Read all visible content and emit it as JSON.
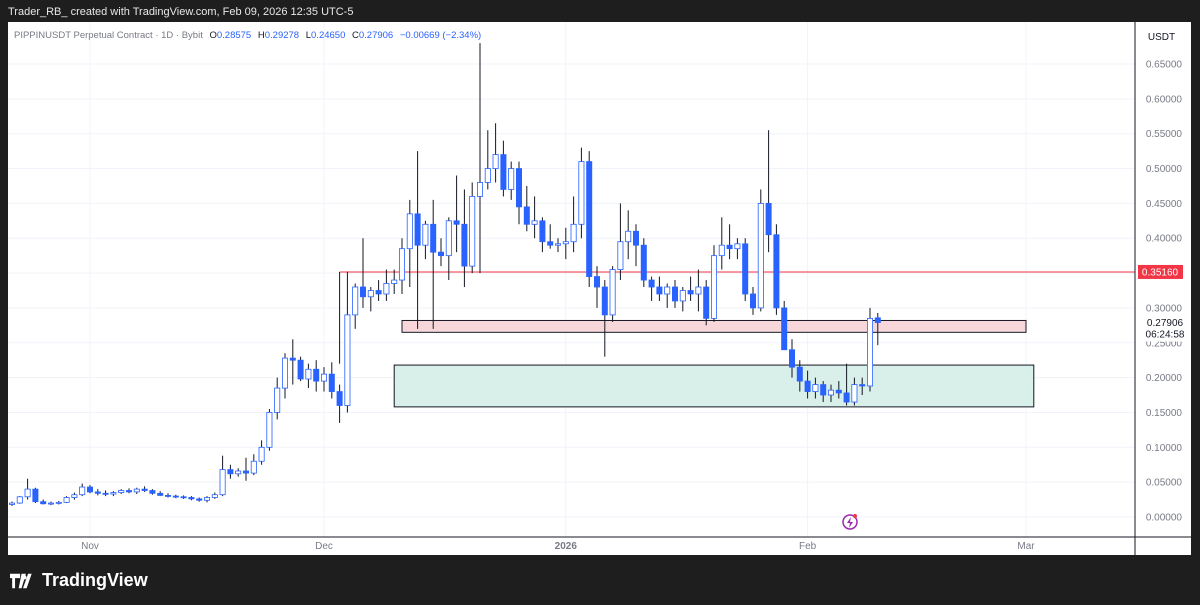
{
  "header": {
    "text": "Trader_RB_ created with TradingView.com, Feb 09, 2026 12:35 UTC-5"
  },
  "legend": {
    "symbol": "PIPPINUSDT Perpetual Contract · 1D · Bybit",
    "open_label": "O",
    "open": "0.28575",
    "high_label": "H",
    "high": "0.29278",
    "low_label": "L",
    "low": "0.24650",
    "close_label": "C",
    "close": "0.27906",
    "change": "−0.00669 (−2.34%)"
  },
  "currency": "USDT",
  "y_ticks": [
    "0.65000",
    "0.60000",
    "0.55000",
    "0.50000",
    "0.45000",
    "0.40000",
    "0.35000",
    "0.30000",
    "0.25000",
    "0.20000",
    "0.15000",
    "0.10000",
    "0.05000",
    "0.00000"
  ],
  "x_ticks": [
    "Nov",
    "Dec",
    "2026",
    "Feb",
    "Mar"
  ],
  "badges": {
    "resistance": "0.35160",
    "last_price": "0.27906",
    "countdown": "06:24:58"
  },
  "footer": {
    "brand": "TradingView"
  },
  "colors": {
    "up": "#ffffff",
    "down": "#2962ff",
    "resistance": "#f23645",
    "supply_zone": "#f8d7da",
    "demand_zone": "#d9efe9"
  },
  "chart_data": {
    "type": "candlestick",
    "title": "PIPPINUSDT Perpetual Contract · 1D · Bybit",
    "ylim": [
      0,
      0.68
    ],
    "x_start_label": "Oct 22, 2025",
    "levels": [
      {
        "name": "resistance",
        "value": 0.3516
      }
    ],
    "zones": [
      {
        "name": "supply",
        "from_index": 50,
        "to_index": 130,
        "low": 0.265,
        "high": 0.282
      },
      {
        "name": "demand",
        "from_index": 49,
        "to_index": 131,
        "low": 0.158,
        "high": 0.218
      }
    ],
    "candles": [
      {
        "o": 0.018,
        "h": 0.022,
        "l": 0.016,
        "c": 0.02
      },
      {
        "o": 0.02,
        "h": 0.03,
        "l": 0.019,
        "c": 0.029
      },
      {
        "o": 0.029,
        "h": 0.055,
        "l": 0.025,
        "c": 0.04
      },
      {
        "o": 0.04,
        "h": 0.042,
        "l": 0.02,
        "c": 0.022
      },
      {
        "o": 0.022,
        "h": 0.025,
        "l": 0.018,
        "c": 0.019
      },
      {
        "o": 0.019,
        "h": 0.022,
        "l": 0.017,
        "c": 0.02
      },
      {
        "o": 0.02,
        "h": 0.023,
        "l": 0.018,
        "c": 0.021
      },
      {
        "o": 0.021,
        "h": 0.03,
        "l": 0.02,
        "c": 0.028
      },
      {
        "o": 0.028,
        "h": 0.035,
        "l": 0.025,
        "c": 0.032
      },
      {
        "o": 0.032,
        "h": 0.048,
        "l": 0.03,
        "c": 0.043
      },
      {
        "o": 0.043,
        "h": 0.046,
        "l": 0.034,
        "c": 0.036
      },
      {
        "o": 0.036,
        "h": 0.04,
        "l": 0.031,
        "c": 0.034
      },
      {
        "o": 0.034,
        "h": 0.038,
        "l": 0.03,
        "c": 0.033
      },
      {
        "o": 0.033,
        "h": 0.037,
        "l": 0.03,
        "c": 0.035
      },
      {
        "o": 0.035,
        "h": 0.04,
        "l": 0.033,
        "c": 0.038
      },
      {
        "o": 0.038,
        "h": 0.041,
        "l": 0.034,
        "c": 0.036
      },
      {
        "o": 0.036,
        "h": 0.042,
        "l": 0.033,
        "c": 0.04
      },
      {
        "o": 0.04,
        "h": 0.044,
        "l": 0.036,
        "c": 0.038
      },
      {
        "o": 0.038,
        "h": 0.04,
        "l": 0.032,
        "c": 0.034
      },
      {
        "o": 0.034,
        "h": 0.037,
        "l": 0.03,
        "c": 0.031
      },
      {
        "o": 0.031,
        "h": 0.034,
        "l": 0.028,
        "c": 0.03
      },
      {
        "o": 0.03,
        "h": 0.032,
        "l": 0.027,
        "c": 0.029
      },
      {
        "o": 0.029,
        "h": 0.031,
        "l": 0.026,
        "c": 0.028
      },
      {
        "o": 0.028,
        "h": 0.03,
        "l": 0.024,
        "c": 0.026
      },
      {
        "o": 0.026,
        "h": 0.028,
        "l": 0.022,
        "c": 0.024
      },
      {
        "o": 0.024,
        "h": 0.03,
        "l": 0.021,
        "c": 0.028
      },
      {
        "o": 0.028,
        "h": 0.035,
        "l": 0.026,
        "c": 0.032
      },
      {
        "o": 0.032,
        "h": 0.088,
        "l": 0.03,
        "c": 0.068
      },
      {
        "o": 0.068,
        "h": 0.075,
        "l": 0.055,
        "c": 0.062
      },
      {
        "o": 0.062,
        "h": 0.07,
        "l": 0.058,
        "c": 0.066
      },
      {
        "o": 0.066,
        "h": 0.085,
        "l": 0.052,
        "c": 0.063
      },
      {
        "o": 0.063,
        "h": 0.09,
        "l": 0.06,
        "c": 0.08
      },
      {
        "o": 0.08,
        "h": 0.11,
        "l": 0.075,
        "c": 0.1
      },
      {
        "o": 0.1,
        "h": 0.155,
        "l": 0.095,
        "c": 0.15
      },
      {
        "o": 0.15,
        "h": 0.2,
        "l": 0.14,
        "c": 0.185
      },
      {
        "o": 0.185,
        "h": 0.235,
        "l": 0.17,
        "c": 0.228
      },
      {
        "o": 0.228,
        "h": 0.255,
        "l": 0.19,
        "c": 0.225
      },
      {
        "o": 0.225,
        "h": 0.23,
        "l": 0.195,
        "c": 0.198
      },
      {
        "o": 0.198,
        "h": 0.22,
        "l": 0.185,
        "c": 0.212
      },
      {
        "o": 0.212,
        "h": 0.225,
        "l": 0.18,
        "c": 0.195
      },
      {
        "o": 0.195,
        "h": 0.215,
        "l": 0.18,
        "c": 0.205
      },
      {
        "o": 0.205,
        "h": 0.222,
        "l": 0.17,
        "c": 0.18
      },
      {
        "o": 0.18,
        "h": 0.19,
        "l": 0.135,
        "c": 0.16
      },
      {
        "o": 0.16,
        "h": 0.352,
        "l": 0.15,
        "c": 0.29
      },
      {
        "o": 0.29,
        "h": 0.335,
        "l": 0.27,
        "c": 0.33
      },
      {
        "o": 0.33,
        "h": 0.4,
        "l": 0.3,
        "c": 0.316
      },
      {
        "o": 0.316,
        "h": 0.33,
        "l": 0.295,
        "c": 0.325
      },
      {
        "o": 0.325,
        "h": 0.34,
        "l": 0.31,
        "c": 0.32
      },
      {
        "o": 0.32,
        "h": 0.355,
        "l": 0.31,
        "c": 0.335
      },
      {
        "o": 0.335,
        "h": 0.355,
        "l": 0.32,
        "c": 0.34
      },
      {
        "o": 0.34,
        "h": 0.4,
        "l": 0.32,
        "c": 0.385
      },
      {
        "o": 0.385,
        "h": 0.455,
        "l": 0.33,
        "c": 0.435
      },
      {
        "o": 0.435,
        "h": 0.525,
        "l": 0.27,
        "c": 0.39
      },
      {
        "o": 0.39,
        "h": 0.425,
        "l": 0.37,
        "c": 0.42
      },
      {
        "o": 0.42,
        "h": 0.455,
        "l": 0.27,
        "c": 0.38
      },
      {
        "o": 0.38,
        "h": 0.4,
        "l": 0.36,
        "c": 0.375
      },
      {
        "o": 0.375,
        "h": 0.43,
        "l": 0.34,
        "c": 0.425
      },
      {
        "o": 0.425,
        "h": 0.49,
        "l": 0.38,
        "c": 0.42
      },
      {
        "o": 0.42,
        "h": 0.47,
        "l": 0.33,
        "c": 0.36
      },
      {
        "o": 0.36,
        "h": 0.48,
        "l": 0.35,
        "c": 0.46
      },
      {
        "o": 0.46,
        "h": 0.68,
        "l": 0.35,
        "c": 0.48
      },
      {
        "o": 0.48,
        "h": 0.555,
        "l": 0.47,
        "c": 0.5
      },
      {
        "o": 0.5,
        "h": 0.565,
        "l": 0.48,
        "c": 0.52
      },
      {
        "o": 0.52,
        "h": 0.54,
        "l": 0.46,
        "c": 0.47
      },
      {
        "o": 0.47,
        "h": 0.51,
        "l": 0.455,
        "c": 0.5
      },
      {
        "o": 0.5,
        "h": 0.51,
        "l": 0.42,
        "c": 0.445
      },
      {
        "o": 0.445,
        "h": 0.475,
        "l": 0.41,
        "c": 0.42
      },
      {
        "o": 0.42,
        "h": 0.46,
        "l": 0.4,
        "c": 0.425
      },
      {
        "o": 0.425,
        "h": 0.43,
        "l": 0.38,
        "c": 0.395
      },
      {
        "o": 0.395,
        "h": 0.42,
        "l": 0.385,
        "c": 0.39
      },
      {
        "o": 0.39,
        "h": 0.4,
        "l": 0.38,
        "c": 0.392
      },
      {
        "o": 0.392,
        "h": 0.415,
        "l": 0.37,
        "c": 0.395
      },
      {
        "o": 0.395,
        "h": 0.46,
        "l": 0.38,
        "c": 0.42
      },
      {
        "o": 0.42,
        "h": 0.53,
        "l": 0.4,
        "c": 0.51
      },
      {
        "o": 0.51,
        "h": 0.525,
        "l": 0.33,
        "c": 0.345
      },
      {
        "o": 0.345,
        "h": 0.36,
        "l": 0.3,
        "c": 0.33
      },
      {
        "o": 0.33,
        "h": 0.34,
        "l": 0.23,
        "c": 0.29
      },
      {
        "o": 0.29,
        "h": 0.36,
        "l": 0.28,
        "c": 0.355
      },
      {
        "o": 0.355,
        "h": 0.45,
        "l": 0.34,
        "c": 0.395
      },
      {
        "o": 0.395,
        "h": 0.44,
        "l": 0.37,
        "c": 0.41
      },
      {
        "o": 0.41,
        "h": 0.42,
        "l": 0.36,
        "c": 0.39
      },
      {
        "o": 0.39,
        "h": 0.4,
        "l": 0.33,
        "c": 0.34
      },
      {
        "o": 0.34,
        "h": 0.345,
        "l": 0.31,
        "c": 0.33
      },
      {
        "o": 0.33,
        "h": 0.345,
        "l": 0.31,
        "c": 0.32
      },
      {
        "o": 0.32,
        "h": 0.335,
        "l": 0.3,
        "c": 0.33
      },
      {
        "o": 0.33,
        "h": 0.34,
        "l": 0.3,
        "c": 0.31
      },
      {
        "o": 0.31,
        "h": 0.33,
        "l": 0.295,
        "c": 0.325
      },
      {
        "o": 0.325,
        "h": 0.345,
        "l": 0.31,
        "c": 0.32
      },
      {
        "o": 0.32,
        "h": 0.355,
        "l": 0.295,
        "c": 0.33
      },
      {
        "o": 0.33,
        "h": 0.34,
        "l": 0.275,
        "c": 0.285
      },
      {
        "o": 0.285,
        "h": 0.39,
        "l": 0.28,
        "c": 0.375
      },
      {
        "o": 0.375,
        "h": 0.43,
        "l": 0.355,
        "c": 0.39
      },
      {
        "o": 0.39,
        "h": 0.42,
        "l": 0.37,
        "c": 0.385
      },
      {
        "o": 0.385,
        "h": 0.4,
        "l": 0.37,
        "c": 0.392
      },
      {
        "o": 0.392,
        "h": 0.4,
        "l": 0.31,
        "c": 0.32
      },
      {
        "o": 0.32,
        "h": 0.33,
        "l": 0.29,
        "c": 0.3
      },
      {
        "o": 0.3,
        "h": 0.47,
        "l": 0.295,
        "c": 0.45
      },
      {
        "o": 0.45,
        "h": 0.555,
        "l": 0.38,
        "c": 0.405
      },
      {
        "o": 0.405,
        "h": 0.42,
        "l": 0.29,
        "c": 0.3
      },
      {
        "o": 0.3,
        "h": 0.31,
        "l": 0.24,
        "c": 0.24
      },
      {
        "o": 0.24,
        "h": 0.255,
        "l": 0.2,
        "c": 0.215
      },
      {
        "o": 0.215,
        "h": 0.225,
        "l": 0.18,
        "c": 0.195
      },
      {
        "o": 0.195,
        "h": 0.21,
        "l": 0.17,
        "c": 0.18
      },
      {
        "o": 0.18,
        "h": 0.2,
        "l": 0.17,
        "c": 0.19
      },
      {
        "o": 0.19,
        "h": 0.195,
        "l": 0.165,
        "c": 0.175
      },
      {
        "o": 0.175,
        "h": 0.19,
        "l": 0.165,
        "c": 0.182
      },
      {
        "o": 0.182,
        "h": 0.195,
        "l": 0.17,
        "c": 0.178
      },
      {
        "o": 0.178,
        "h": 0.22,
        "l": 0.16,
        "c": 0.165
      },
      {
        "o": 0.165,
        "h": 0.2,
        "l": 0.16,
        "c": 0.19
      },
      {
        "o": 0.19,
        "h": 0.2,
        "l": 0.175,
        "c": 0.188
      },
      {
        "o": 0.188,
        "h": 0.3,
        "l": 0.18,
        "c": 0.285
      },
      {
        "o": 0.28575,
        "h": 0.29278,
        "l": 0.2465,
        "c": 0.27906
      }
    ]
  }
}
